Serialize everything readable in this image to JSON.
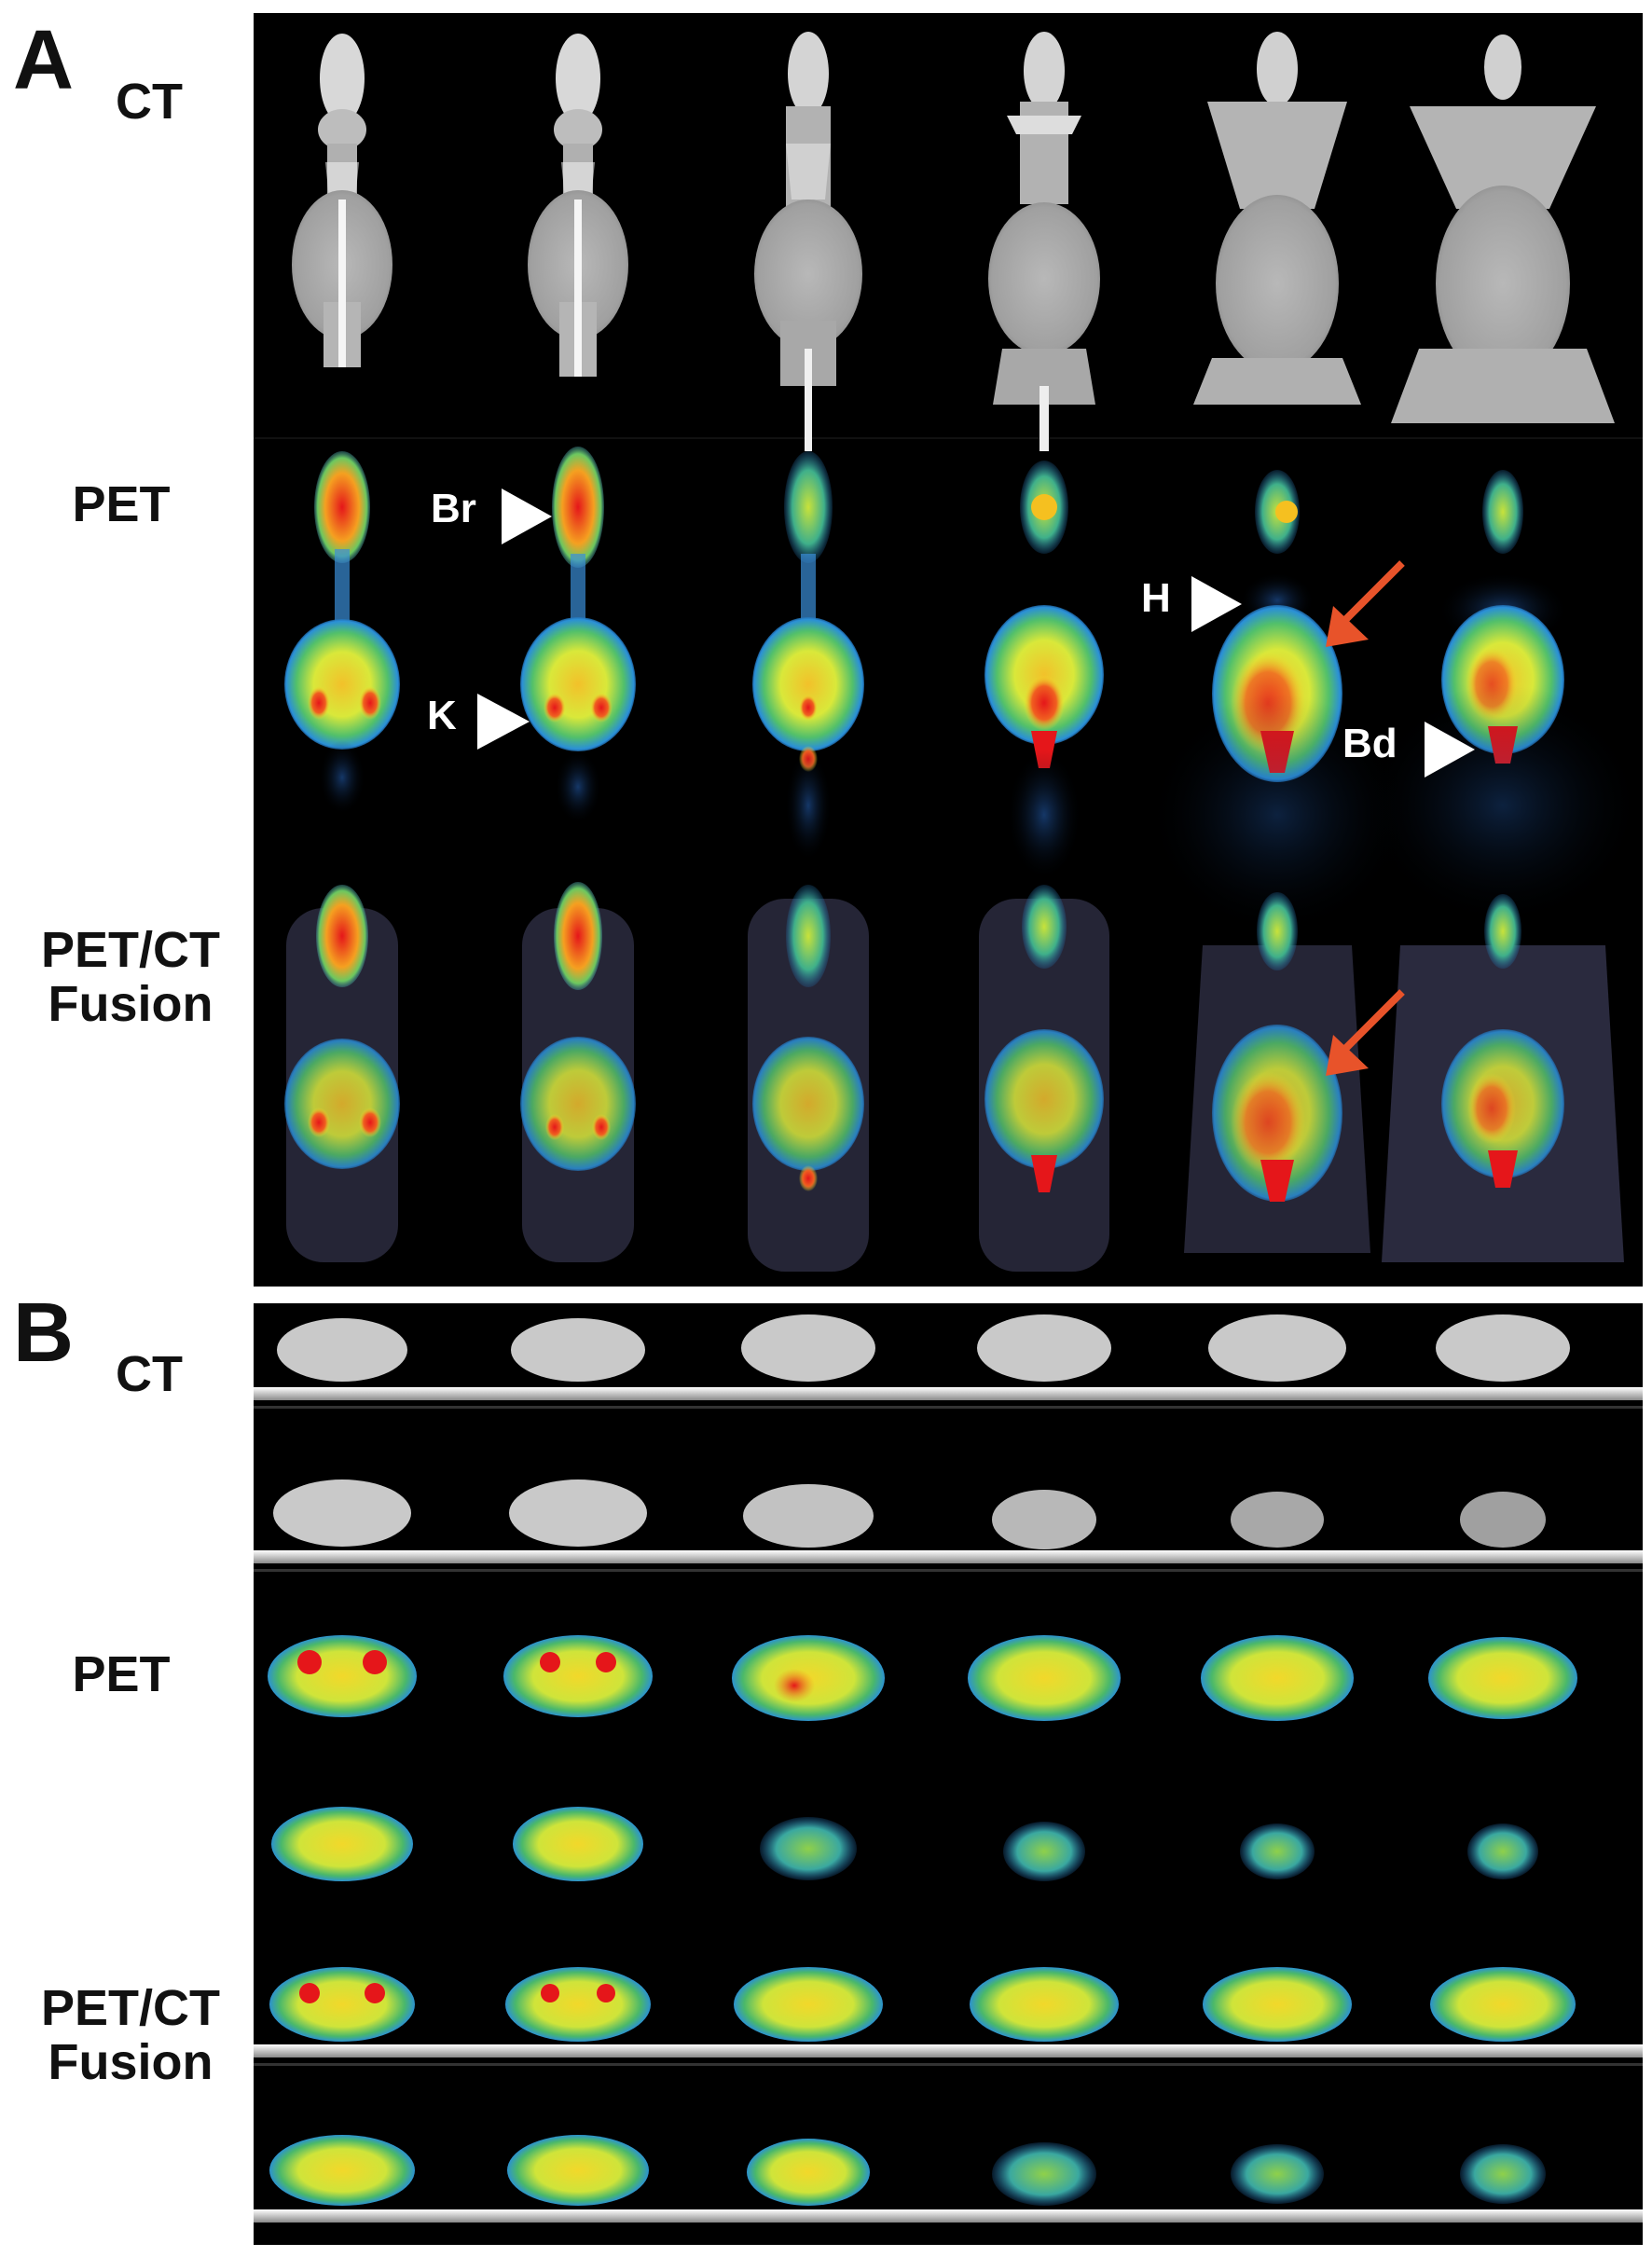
{
  "panels": [
    {
      "letter": "A",
      "rows": [
        "CT",
        "PET",
        "PET/CT\nFusion"
      ]
    },
    {
      "letter": "B",
      "rows": [
        "CT",
        "PET",
        "PET/CT\nFusion"
      ]
    }
  ],
  "panel_a": {
    "rows": [
      {
        "id": "ct",
        "label": "CT"
      },
      {
        "id": "pet",
        "label": "PET"
      },
      {
        "id": "fusion",
        "label": "PET/CT Fusion"
      }
    ],
    "annotations": {
      "br": "Br",
      "k": "K",
      "h": "H",
      "bd": "Bd"
    },
    "colors": {
      "arrow": "#e8532a",
      "hot": "#e5161a",
      "warm": "#f5e52a",
      "cool": "#3ba7e6",
      "bone": "#f2f2f2",
      "soft_tissue": "#a9a9a9"
    },
    "columns": 6
  },
  "panel_b": {
    "rows": [
      {
        "id": "ct",
        "label": "CT"
      },
      {
        "id": "pet",
        "label": "PET"
      },
      {
        "id": "fusion",
        "label": "PET/CT Fusion"
      }
    ],
    "columns": 6,
    "strips_per_modality": 2
  }
}
